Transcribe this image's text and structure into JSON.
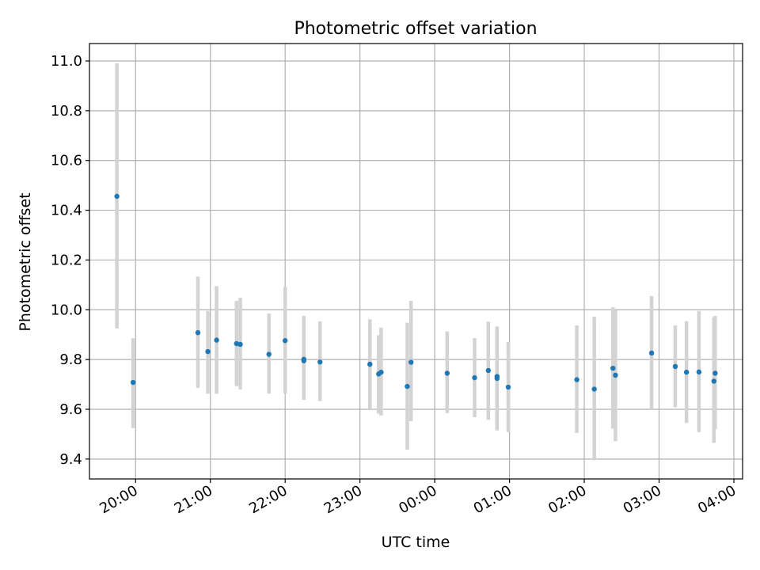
{
  "chart_data": {
    "type": "scatter",
    "title": "Photometric offset variation",
    "xlabel": "UTC time",
    "ylabel": "Photometric offset",
    "grid": true,
    "legend": "none",
    "marker_color": "#1f77b4",
    "errorbar_color": "#d3d3d3",
    "xlim": [
      "2023-01-01 19:23",
      "2023-01-02 04:07"
    ],
    "ylim": [
      9.32,
      11.07
    ],
    "x_ticks": [
      {
        "time": "2023-01-01 20:00",
        "label": "20:00"
      },
      {
        "time": "2023-01-01 21:00",
        "label": "21:00"
      },
      {
        "time": "2023-01-01 22:00",
        "label": "22:00"
      },
      {
        "time": "2023-01-01 23:00",
        "label": "23:00"
      },
      {
        "time": "2023-01-02 00:00",
        "label": "00:00"
      },
      {
        "time": "2023-01-02 01:00",
        "label": "01:00"
      },
      {
        "time": "2023-01-02 02:00",
        "label": "02:00"
      },
      {
        "time": "2023-01-02 03:00",
        "label": "03:00"
      },
      {
        "time": "2023-01-02 04:00",
        "label": "04:00"
      }
    ],
    "y_ticks": [
      {
        "value": 9.4,
        "label": "9.4"
      },
      {
        "value": 9.6,
        "label": "9.6"
      },
      {
        "value": 9.8,
        "label": "9.8"
      },
      {
        "value": 10.0,
        "label": "10.0"
      },
      {
        "value": 10.2,
        "label": "10.2"
      },
      {
        "value": 10.4,
        "label": "10.4"
      },
      {
        "value": 10.6,
        "label": "10.6"
      },
      {
        "value": 10.8,
        "label": "10.8"
      },
      {
        "value": 11.0,
        "label": "11.0"
      }
    ],
    "points": [
      {
        "time": "2023-01-01 19:45",
        "y": 10.456,
        "low": 9.925,
        "high": 10.99
      },
      {
        "time": "2023-01-01 19:58",
        "y": 9.708,
        "low": 9.525,
        "high": 9.885
      },
      {
        "time": "2023-01-01 20:50",
        "y": 9.908,
        "low": 9.686,
        "high": 10.133
      },
      {
        "time": "2023-01-01 20:58",
        "y": 9.832,
        "low": 9.663,
        "high": 9.995
      },
      {
        "time": "2023-01-01 21:05",
        "y": 9.878,
        "low": 9.663,
        "high": 10.095
      },
      {
        "time": "2023-01-01 21:21",
        "y": 9.864,
        "low": 9.693,
        "high": 10.036
      },
      {
        "time": "2023-01-01 21:24",
        "y": 9.861,
        "low": 9.68,
        "high": 10.048
      },
      {
        "time": "2023-01-01 21:47",
        "y": 9.821,
        "low": 9.663,
        "high": 9.985
      },
      {
        "time": "2023-01-01 22:00",
        "y": 9.876,
        "low": 9.663,
        "high": 10.092
      },
      {
        "time": "2023-01-01 22:15",
        "y": 9.801,
        "low": 9.638,
        "high": 9.975
      },
      {
        "time": "2023-01-01 22:15",
        "y": 9.795,
        "low": 9.638,
        "high": 9.96
      },
      {
        "time": "2023-01-01 22:28",
        "y": 9.79,
        "low": 9.633,
        "high": 9.953
      },
      {
        "time": "2023-01-01 23:08",
        "y": 9.781,
        "low": 9.6,
        "high": 9.962
      },
      {
        "time": "2023-01-01 23:15",
        "y": 9.742,
        "low": 9.583,
        "high": 9.898
      },
      {
        "time": "2023-01-01 23:17",
        "y": 9.749,
        "low": 9.575,
        "high": 9.928
      },
      {
        "time": "2023-01-01 23:38",
        "y": 9.692,
        "low": 9.438,
        "high": 9.948
      },
      {
        "time": "2023-01-01 23:41",
        "y": 9.789,
        "low": 9.552,
        "high": 10.036
      },
      {
        "time": "2023-01-02 00:10",
        "y": 9.745,
        "low": 9.585,
        "high": 9.913
      },
      {
        "time": "2023-01-02 00:32",
        "y": 9.727,
        "low": 9.568,
        "high": 9.886
      },
      {
        "time": "2023-01-02 00:43",
        "y": 9.756,
        "low": 9.558,
        "high": 9.952
      },
      {
        "time": "2023-01-02 00:50",
        "y": 9.732,
        "low": 9.515,
        "high": 9.933
      },
      {
        "time": "2023-01-02 00:50",
        "y": 9.724,
        "low": 9.535,
        "high": 9.92
      },
      {
        "time": "2023-01-02 00:59",
        "y": 9.689,
        "low": 9.508,
        "high": 9.87
      },
      {
        "time": "2023-01-02 01:54",
        "y": 9.719,
        "low": 9.505,
        "high": 9.937
      },
      {
        "time": "2023-01-02 02:08",
        "y": 9.681,
        "low": 9.395,
        "high": 9.972
      },
      {
        "time": "2023-01-02 02:23",
        "y": 9.765,
        "low": 9.522,
        "high": 10.01
      },
      {
        "time": "2023-01-02 02:25",
        "y": 9.737,
        "low": 9.472,
        "high": 9.998
      },
      {
        "time": "2023-01-02 02:54",
        "y": 9.826,
        "low": 9.6,
        "high": 10.055
      },
      {
        "time": "2023-01-02 03:13",
        "y": 9.772,
        "low": 9.608,
        "high": 9.937
      },
      {
        "time": "2023-01-02 03:22",
        "y": 9.749,
        "low": 9.545,
        "high": 9.954
      },
      {
        "time": "2023-01-02 03:32",
        "y": 9.75,
        "low": 9.508,
        "high": 9.995
      },
      {
        "time": "2023-01-02 03:44",
        "y": 9.713,
        "low": 9.465,
        "high": 9.97
      },
      {
        "time": "2023-01-02 03:45",
        "y": 9.745,
        "low": 9.52,
        "high": 9.975
      }
    ]
  }
}
